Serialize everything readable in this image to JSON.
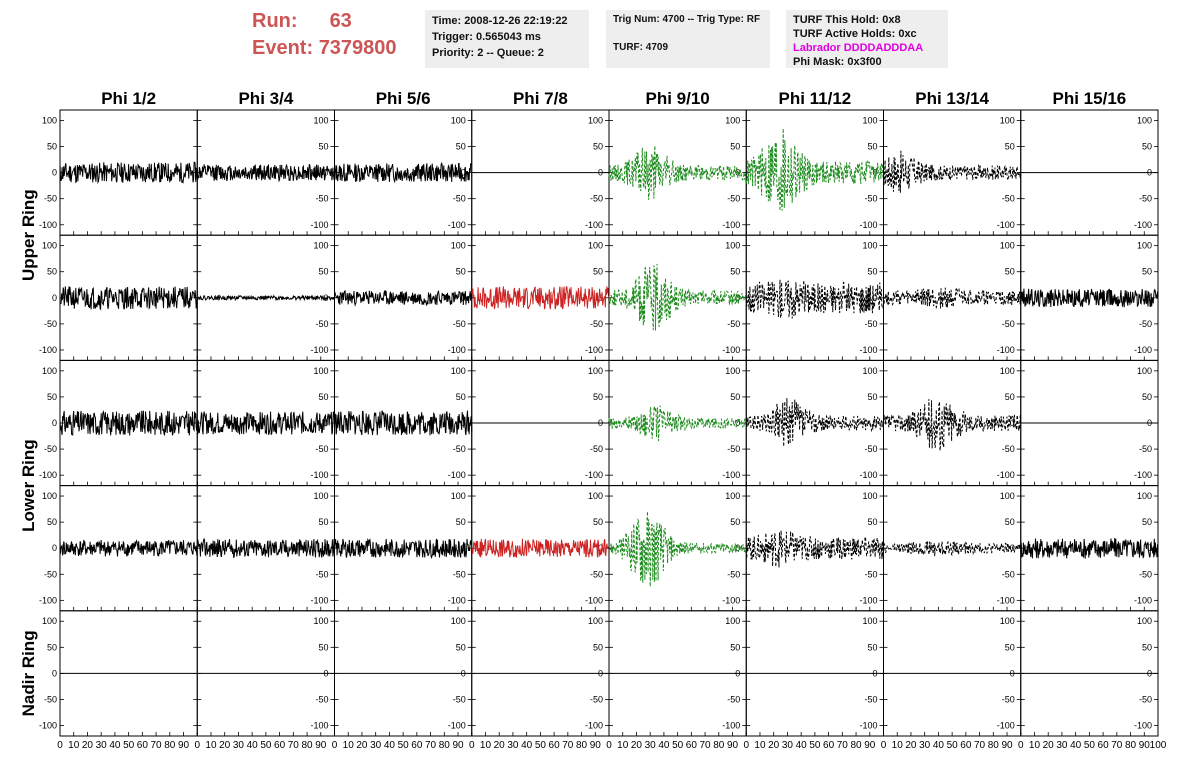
{
  "header": {
    "run_label": "Run:",
    "run_value": "63",
    "event_label": "Event:",
    "event_value": "7379800",
    "time": "Time: 2008-12-26 22:19:22",
    "trigger": "Trigger: 0.565043 ms",
    "priority": "Priority: 2 -- Queue: 2",
    "trig_num": "Trig Num: 4700 -- Trig Type: RF",
    "turf": "TURF: 4709",
    "turf_hold": "TURF This Hold: 0x8",
    "turf_active": "TURF Active Holds: 0xc",
    "labrador": "Labrador DDDDADDDAA",
    "phi_mask": "Phi Mask: 0x3f00"
  },
  "chart_data": {
    "type": "line",
    "columns": [
      "Phi 1/2",
      "Phi 3/4",
      "Phi 5/6",
      "Phi 7/8",
      "Phi 9/10",
      "Phi 11/12",
      "Phi 13/14",
      "Phi 15/16"
    ],
    "rows": [
      "Upper Ring",
      "Upper Ring",
      "Lower Ring",
      "Lower Ring",
      "Nadir Ring"
    ],
    "row_labels": [
      {
        "label": "Upper Ring",
        "spans_rows": [
          0,
          1
        ]
      },
      {
        "label": "Lower Ring",
        "spans_rows": [
          2,
          3
        ]
      },
      {
        "label": "Nadir Ring",
        "spans_rows": [
          4
        ]
      }
    ],
    "xlim": [
      0,
      100
    ],
    "ylim": [
      -120,
      120
    ],
    "x_ticks": [
      0,
      10,
      20,
      30,
      40,
      50,
      60,
      70,
      80,
      90,
      100
    ],
    "y_ticks": [
      100,
      50,
      0,
      -50,
      -100
    ],
    "styles": {
      "black": {
        "color": "#000000",
        "dash": "solid"
      },
      "red": {
        "color": "#cc2222",
        "dash": "solid"
      },
      "green": {
        "color": "#1e8c1e",
        "dash": "dashed"
      },
      "blackdash": {
        "color": "#000000",
        "dash": "dashed"
      },
      "flat": {
        "color": "#000000",
        "dash": "solid"
      }
    },
    "waveforms": [
      [
        {
          "style": "black",
          "amp": 20,
          "burst": 0,
          "center": 0,
          "seed": 11
        },
        {
          "style": "black",
          "amp": 16,
          "burst": 0,
          "center": 0,
          "seed": 12
        },
        {
          "style": "black",
          "amp": 18,
          "burst": 0,
          "center": 0,
          "seed": 13
        },
        {
          "style": "flat",
          "amp": 0,
          "burst": 0,
          "center": 0,
          "seed": 14
        },
        {
          "style": "green",
          "amp": 14,
          "burst": 40,
          "center": 30,
          "seed": 15
        },
        {
          "style": "green",
          "amp": 22,
          "burst": 70,
          "center": 25,
          "seed": 16
        },
        {
          "style": "blackdash",
          "amp": 14,
          "burst": 28,
          "center": 12,
          "seed": 17
        },
        {
          "style": "flat",
          "amp": 0,
          "burst": 0,
          "center": 0,
          "seed": 18
        }
      ],
      [
        {
          "style": "black",
          "amp": 22,
          "burst": 0,
          "center": 0,
          "seed": 21
        },
        {
          "style": "black",
          "amp": 4,
          "burst": 0,
          "center": 0,
          "seed": 22
        },
        {
          "style": "black",
          "amp": 14,
          "burst": 0,
          "center": 0,
          "seed": 23
        },
        {
          "style": "red",
          "amp": 22,
          "burst": 0,
          "center": 0,
          "seed": 24
        },
        {
          "style": "green",
          "amp": 14,
          "burst": 55,
          "center": 32,
          "seed": 25
        },
        {
          "style": "blackdash",
          "amp": 30,
          "burst": 10,
          "center": 30,
          "seed": 26
        },
        {
          "style": "blackdash",
          "amp": 14,
          "burst": 8,
          "center": 40,
          "seed": 27
        },
        {
          "style": "black",
          "amp": 18,
          "burst": 0,
          "center": 0,
          "seed": 28
        }
      ],
      [
        {
          "style": "black",
          "amp": 24,
          "burst": 0,
          "center": 0,
          "seed": 31
        },
        {
          "style": "black",
          "amp": 22,
          "burst": 0,
          "center": 0,
          "seed": 32
        },
        {
          "style": "black",
          "amp": 24,
          "burst": 0,
          "center": 0,
          "seed": 33
        },
        {
          "style": "flat",
          "amp": 0,
          "burst": 0,
          "center": 0,
          "seed": 34
        },
        {
          "style": "green",
          "amp": 10,
          "burst": 25,
          "center": 35,
          "seed": 35
        },
        {
          "style": "blackdash",
          "amp": 14,
          "burst": 35,
          "center": 32,
          "seed": 36
        },
        {
          "style": "blackdash",
          "amp": 16,
          "burst": 40,
          "center": 40,
          "seed": 37
        },
        {
          "style": "flat",
          "amp": 0,
          "burst": 0,
          "center": 0,
          "seed": 38
        }
      ],
      [
        {
          "style": "black",
          "amp": 16,
          "burst": 0,
          "center": 0,
          "seed": 41
        },
        {
          "style": "black",
          "amp": 18,
          "burst": 0,
          "center": 0,
          "seed": 42
        },
        {
          "style": "black",
          "amp": 18,
          "burst": 0,
          "center": 0,
          "seed": 43
        },
        {
          "style": "red",
          "amp": 18,
          "burst": 0,
          "center": 0,
          "seed": 44
        },
        {
          "style": "green",
          "amp": 10,
          "burst": 70,
          "center": 28,
          "seed": 45
        },
        {
          "style": "blackdash",
          "amp": 22,
          "burst": 15,
          "center": 25,
          "seed": 46
        },
        {
          "style": "blackdash",
          "amp": 10,
          "burst": 6,
          "center": 40,
          "seed": 47
        },
        {
          "style": "black",
          "amp": 20,
          "burst": 0,
          "center": 0,
          "seed": 48
        }
      ],
      [
        {
          "style": "flat",
          "amp": 0,
          "burst": 0,
          "center": 0,
          "seed": 51
        },
        {
          "style": "flat",
          "amp": 0,
          "burst": 0,
          "center": 0,
          "seed": 52
        },
        {
          "style": "flat",
          "amp": 0,
          "burst": 0,
          "center": 0,
          "seed": 53
        },
        {
          "style": "flat",
          "amp": 0,
          "burst": 0,
          "center": 0,
          "seed": 54
        },
        {
          "style": "flat",
          "amp": 0,
          "burst": 0,
          "center": 0,
          "seed": 55
        },
        {
          "style": "flat",
          "amp": 0,
          "burst": 0,
          "center": 0,
          "seed": 56
        },
        {
          "style": "flat",
          "amp": 0,
          "burst": 0,
          "center": 0,
          "seed": 57
        },
        {
          "style": "flat",
          "amp": 0,
          "burst": 0,
          "center": 0,
          "seed": 58
        }
      ]
    ]
  }
}
